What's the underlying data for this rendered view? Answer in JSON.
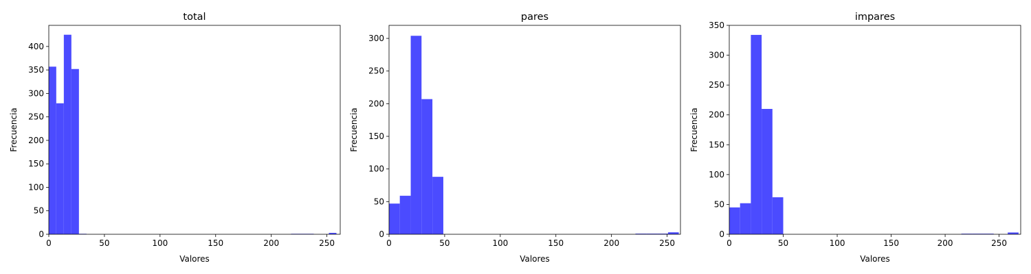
{
  "chart_data": [
    {
      "type": "bar",
      "title": "total",
      "xlabel": "Valores",
      "ylabel": "Frecuencia",
      "xlim": [
        0,
        262
      ],
      "ylim": [
        0,
        445
      ],
      "xticks": [
        0,
        50,
        100,
        150,
        200,
        250
      ],
      "yticks": [
        0,
        50,
        100,
        150,
        200,
        250,
        300,
        350,
        400
      ],
      "bar_color": "#4b4bff",
      "bins": [
        {
          "x0": 0,
          "x1": 6.7,
          "count": 357
        },
        {
          "x0": 6.7,
          "x1": 13.5,
          "count": 279
        },
        {
          "x0": 13.5,
          "x1": 20.3,
          "count": 425
        },
        {
          "x0": 20.3,
          "x1": 27.1,
          "count": 352
        },
        {
          "x0": 27.1,
          "x1": 33.9,
          "count": 1
        },
        {
          "x0": 217.8,
          "x1": 224.6,
          "count": 1
        },
        {
          "x0": 224.6,
          "x1": 231.4,
          "count": 1
        },
        {
          "x0": 231.4,
          "x1": 238.2,
          "count": 1
        },
        {
          "x0": 251.8,
          "x1": 258.6,
          "count": 3
        }
      ]
    },
    {
      "type": "bar",
      "title": "pares",
      "xlabel": "Valores",
      "ylabel": "Frecuencia",
      "xlim": [
        0,
        262
      ],
      "ylim": [
        0,
        320
      ],
      "xticks": [
        0,
        50,
        100,
        150,
        200,
        250
      ],
      "yticks": [
        0,
        50,
        100,
        150,
        200,
        250,
        300
      ],
      "bar_color": "#4b4bff",
      "bins": [
        {
          "x0": 0,
          "x1": 9.7,
          "count": 47
        },
        {
          "x0": 9.7,
          "x1": 19.5,
          "count": 59
        },
        {
          "x0": 19.5,
          "x1": 29.2,
          "count": 304
        },
        {
          "x0": 29.2,
          "x1": 39.0,
          "count": 207
        },
        {
          "x0": 39.0,
          "x1": 48.8,
          "count": 88
        },
        {
          "x0": 221.5,
          "x1": 231.3,
          "count": 1
        },
        {
          "x0": 231.3,
          "x1": 241.0,
          "count": 1
        },
        {
          "x0": 241.0,
          "x1": 250.8,
          "count": 1
        },
        {
          "x0": 250.8,
          "x1": 260.5,
          "count": 3
        }
      ]
    },
    {
      "type": "bar",
      "title": "impares",
      "xlabel": "Valores",
      "ylabel": "Frecuencia",
      "xlim": [
        0,
        270
      ],
      "ylim": [
        0,
        350
      ],
      "xticks": [
        0,
        50,
        100,
        150,
        200,
        250
      ],
      "yticks": [
        0,
        50,
        100,
        150,
        200,
        250,
        300,
        350
      ],
      "bar_color": "#4b4bff",
      "bins": [
        {
          "x0": 0,
          "x1": 10.0,
          "count": 45
        },
        {
          "x0": 10.0,
          "x1": 20.0,
          "count": 52
        },
        {
          "x0": 20.0,
          "x1": 30.0,
          "count": 334
        },
        {
          "x0": 30.0,
          "x1": 40.0,
          "count": 210
        },
        {
          "x0": 40.0,
          "x1": 50.0,
          "count": 62
        },
        {
          "x0": 215.0,
          "x1": 225.0,
          "count": 1
        },
        {
          "x0": 225.0,
          "x1": 235.0,
          "count": 1
        },
        {
          "x0": 235.0,
          "x1": 245.0,
          "count": 1
        },
        {
          "x0": 258.0,
          "x1": 268.0,
          "count": 3
        }
      ]
    }
  ]
}
